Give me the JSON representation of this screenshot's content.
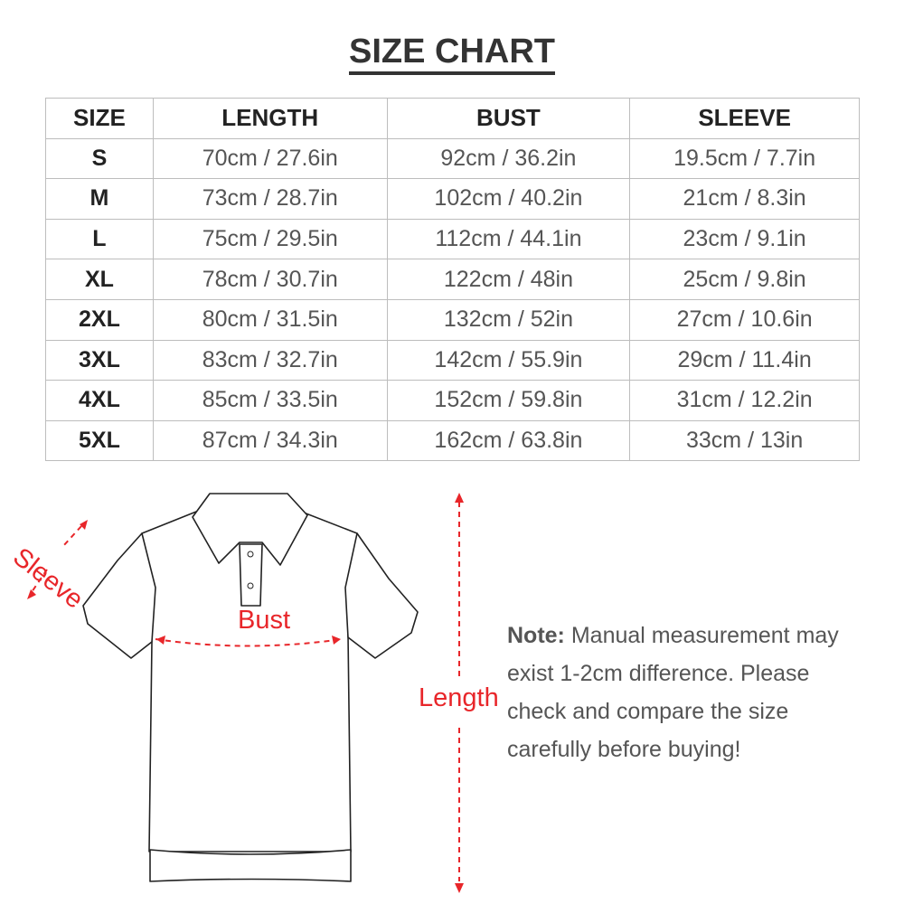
{
  "title": "SIZE CHART",
  "table": {
    "headers": [
      "SIZE",
      "LENGTH",
      "BUST",
      "SLEEVE"
    ],
    "rows": [
      [
        "S",
        "70cm / 27.6in",
        "92cm / 36.2in",
        "19.5cm / 7.7in"
      ],
      [
        "M",
        "73cm / 28.7in",
        "102cm / 40.2in",
        "21cm / 8.3in"
      ],
      [
        "L",
        "75cm / 29.5in",
        "112cm / 44.1in",
        "23cm / 9.1in"
      ],
      [
        "XL",
        "78cm / 30.7in",
        "122cm / 48in",
        "25cm / 9.8in"
      ],
      [
        "2XL",
        "80cm / 31.5in",
        "132cm / 52in",
        "27cm / 10.6in"
      ],
      [
        "3XL",
        "83cm / 32.7in",
        "142cm / 55.9in",
        "29cm / 11.4in"
      ],
      [
        "4XL",
        "85cm / 33.5in",
        "152cm / 59.8in",
        "31cm / 12.2in"
      ],
      [
        "5XL",
        "87cm / 34.3in",
        "162cm / 63.8in",
        "33cm / 13in"
      ]
    ]
  },
  "diagram": {
    "sleeve_label": "Sleeve",
    "bust_label": "Bust",
    "length_label": "Length",
    "measure_color": "#e8262a"
  },
  "note": {
    "label": "Note:",
    "text": "Manual measurement may exist 1-2cm difference. Please check and compare the size carefully before buying!"
  }
}
